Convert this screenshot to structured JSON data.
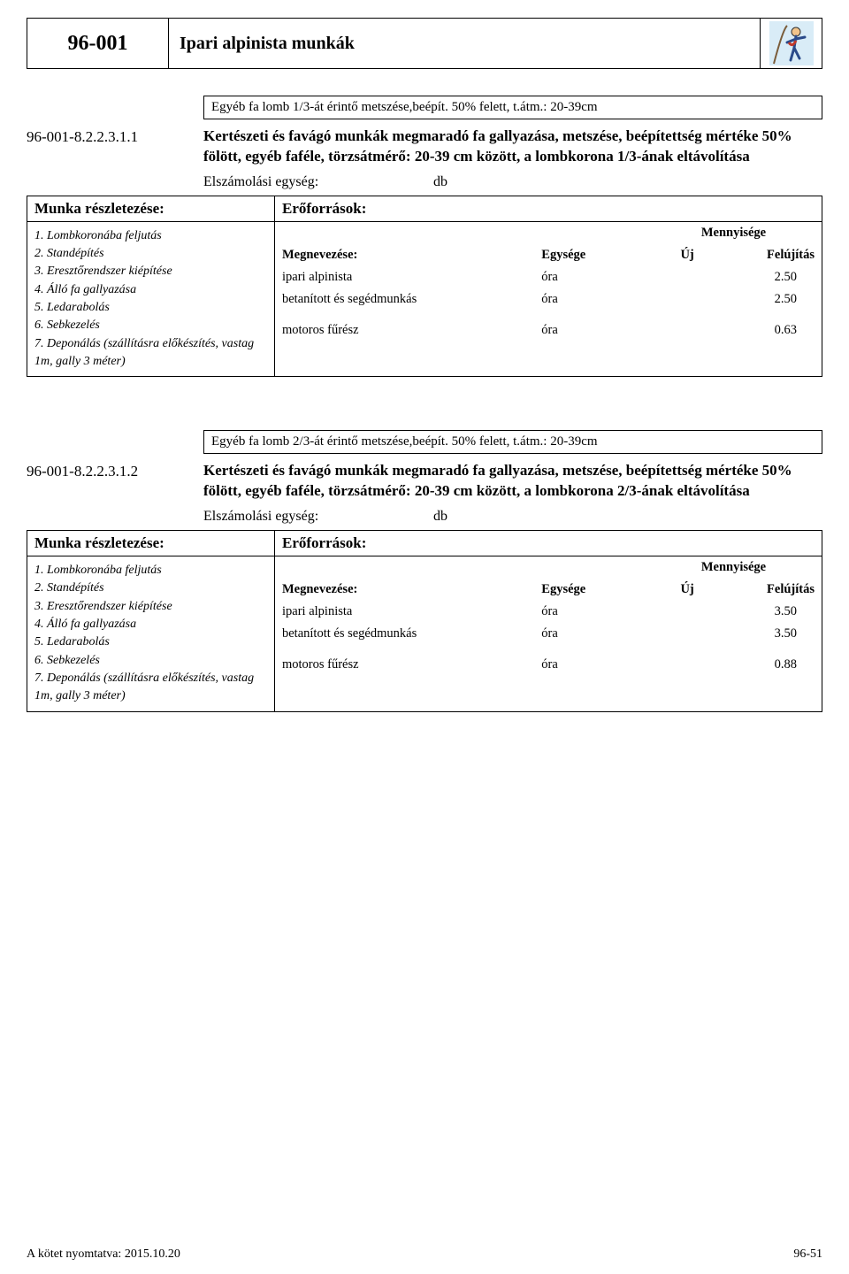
{
  "header": {
    "code": "96-001",
    "title": "Ipari alpinista munkák"
  },
  "sections": [
    {
      "variant": "Egyéb fa lomb 1/3-át érintő metszése,beépít. 50% felett, t.átm.: 20-39cm",
      "code": "96-001-8.2.2.3.1.1",
      "description": "Kertészeti és favágó munkák megmaradó fa gallyazása, metszése, beépítettség mértéke 50% fölött, egyéb faféle, törzsátmérő: 20-39 cm között, a lombkorona 1/3-ának eltávolítása",
      "unit_label": "Elszámolási egység:",
      "unit_value": "db",
      "work_heading": "Munka részletezése:",
      "resources_heading": "Erőforrások:",
      "steps": [
        "1. Lombkoronába feljutás",
        "2. Standépítés",
        "3. Eresztőrendszer kiépítése",
        "4. Álló fa gallyazása",
        "5. Ledarabolás",
        "6. Sebkezelés",
        "7. Deponálás (szállításra előkészítés, vastag 1m, gally 3 méter)"
      ],
      "res_header": {
        "name": "Megnevezése:",
        "unit": "Egysége",
        "qty": "Mennyisége",
        "new": "Új",
        "ref": "Felújítás"
      },
      "rows": [
        {
          "name": "ipari alpinista",
          "unit": "óra",
          "val": "2.50"
        },
        {
          "name": "betanított és segédmunkás",
          "unit": "óra",
          "val": "2.50"
        },
        {
          "gap": true
        },
        {
          "name": "motoros fűrész",
          "unit": "óra",
          "val": "0.63"
        }
      ]
    },
    {
      "variant": "Egyéb fa lomb 2/3-át érintő metszése,beépít. 50% felett, t.átm.: 20-39cm",
      "code": "96-001-8.2.2.3.1.2",
      "description": "Kertészeti és favágó munkák megmaradó fa gallyazása, metszése, beépítettség mértéke 50% fölött, egyéb faféle, törzsátmérő: 20-39 cm között, a lombkorona 2/3-ának eltávolítása",
      "unit_label": "Elszámolási egység:",
      "unit_value": "db",
      "work_heading": "Munka részletezése:",
      "resources_heading": "Erőforrások:",
      "steps": [
        "1. Lombkoronába feljutás",
        "2. Standépítés",
        "3. Eresztőrendszer kiépítése",
        "4. Álló fa gallyazása",
        "5. Ledarabolás",
        "6. Sebkezelés",
        "7. Deponálás (szállításra előkészítés, vastag 1m, gally 3 méter)"
      ],
      "res_header": {
        "name": "Megnevezése:",
        "unit": "Egysége",
        "qty": "Mennyisége",
        "new": "Új",
        "ref": "Felújítás"
      },
      "rows": [
        {
          "name": "ipari alpinista",
          "unit": "óra",
          "val": "3.50"
        },
        {
          "name": "betanított és segédmunkás",
          "unit": "óra",
          "val": "3.50"
        },
        {
          "gap": true
        },
        {
          "name": "motoros fűrész",
          "unit": "óra",
          "val": "0.88"
        }
      ]
    }
  ],
  "footer": {
    "left": "A kötet nyomtatva: 2015.10.20",
    "right": "96-51"
  }
}
